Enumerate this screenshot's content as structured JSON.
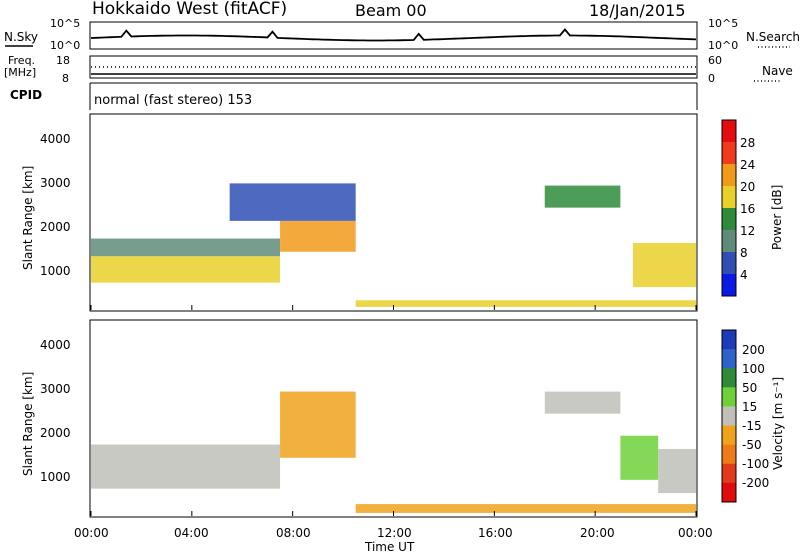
{
  "header": {
    "station": "Hokkaido West (fitACF)",
    "beam": "Beam 00",
    "date": "18/Jan/2015"
  },
  "nsky": {
    "left_label": "N.Sky",
    "right_label": "N.Search",
    "ticks_left": [
      "10^5",
      "10^0"
    ],
    "ticks_right": [
      "10^5",
      "10^0"
    ]
  },
  "freq": {
    "left_label_1": "Freq.",
    "left_label_2": "[MHz]",
    "ticks_left": [
      "18",
      "8"
    ],
    "right_label": "Nave",
    "ticks_right": [
      "60",
      "0"
    ]
  },
  "cpid": {
    "label": "CPID",
    "text": "normal (fast stereo) 153"
  },
  "axes": {
    "ylabel": "Slant Range [km]",
    "xlabel": "Time UT",
    "y_ticks": [
      "1000",
      "2000",
      "3000",
      "4000"
    ],
    "x_ticks": [
      "00:00",
      "04:00",
      "08:00",
      "12:00",
      "16:00",
      "20:00",
      "00:00"
    ]
  },
  "power_colorbar": {
    "label": "Power [dB]",
    "ticks": [
      "4",
      "8",
      "12",
      "16",
      "20",
      "24",
      "28"
    ],
    "colors": [
      "#0a1ae6",
      "#2f4fb5",
      "#5f8c7a",
      "#2e8b3a",
      "#e9cf2a",
      "#f19a1a",
      "#ef3a1c",
      "#e50c10"
    ]
  },
  "velocity_colorbar": {
    "label": "Velocity [m s⁻¹]",
    "ticks": [
      "200",
      "100",
      "50",
      "15",
      "-15",
      "-50",
      "-100",
      "-200"
    ],
    "colors": [
      "#1b3bb8",
      "#2d62c9",
      "#2e8b3a",
      "#6fd13a",
      "#c0c0b8",
      "#f0a21d",
      "#ef7a1a",
      "#e2381c",
      "#e00c0c"
    ]
  },
  "chart_data": [
    {
      "type": "heatmap",
      "title": "",
      "xlabel": "Time UT",
      "ylabel": "Slant Range [km]",
      "xlim": [
        0,
        24
      ],
      "ylim": [
        180,
        4600
      ],
      "colorbar_label": "Power [dB]",
      "colorbar_range": [
        0,
        30
      ],
      "regions": [
        {
          "x": [
            0.0,
            7.5
          ],
          "y": [
            800,
            1400
          ],
          "value": 18
        },
        {
          "x": [
            0.0,
            7.5
          ],
          "y": [
            1400,
            1800
          ],
          "value": 9
        },
        {
          "x": [
            7.5,
            10.5
          ],
          "y": [
            1500,
            2200
          ],
          "value": 20
        },
        {
          "x": [
            5.5,
            10.5
          ],
          "y": [
            2200,
            3050
          ],
          "value": 7
        },
        {
          "x": [
            10.5,
            24.0
          ],
          "y": [
            250,
            400
          ],
          "value": 16
        },
        {
          "x": [
            18.0,
            21.0
          ],
          "y": [
            2500,
            3000
          ],
          "value": 14
        },
        {
          "x": [
            21.5,
            24.0
          ],
          "y": [
            700,
            1700
          ],
          "value": 17
        }
      ]
    },
    {
      "type": "heatmap",
      "title": "",
      "xlabel": "Time UT",
      "ylabel": "Slant Range [km]",
      "xlim": [
        0,
        24
      ],
      "ylim": [
        180,
        4600
      ],
      "colorbar_label": "Velocity [m s⁻¹]",
      "colorbar_range": [
        -200,
        200
      ],
      "regions": [
        {
          "x": [
            0.0,
            7.5
          ],
          "y": [
            800,
            1800
          ],
          "value": 0
        },
        {
          "x": [
            7.5,
            10.5
          ],
          "y": [
            1500,
            3000
          ],
          "value": -40
        },
        {
          "x": [
            10.5,
            24.0
          ],
          "y": [
            250,
            450
          ],
          "value": -60
        },
        {
          "x": [
            18.0,
            21.0
          ],
          "y": [
            2500,
            3000
          ],
          "value": 0
        },
        {
          "x": [
            21.0,
            22.5
          ],
          "y": [
            1000,
            2000
          ],
          "value": 40
        },
        {
          "x": [
            22.5,
            24.0
          ],
          "y": [
            700,
            1700
          ],
          "value": 0
        }
      ]
    }
  ]
}
